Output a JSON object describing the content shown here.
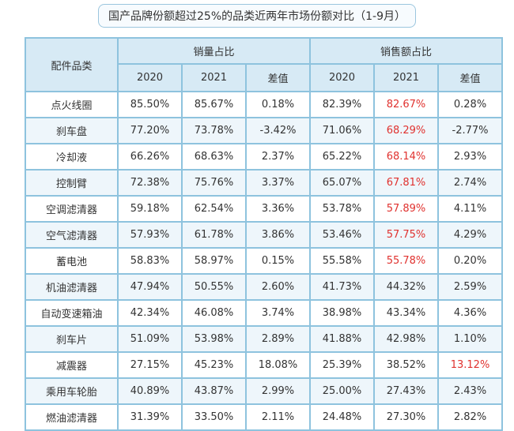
{
  "title": "国产品牌份额超过25%的品类近两年市场份额对比（1-9月）",
  "header": {
    "category": "配件品类",
    "group1": "销量占比",
    "group2": "销售额占比",
    "sub": [
      "2020",
      "2021",
      "差值",
      "2020",
      "2021",
      "差值"
    ]
  },
  "colors": {
    "highlight": "#e0322f",
    "border": "#8ec3de",
    "header_bg": "#d7eaf5"
  },
  "rows": [
    {
      "name": "点火线圈",
      "v": [
        "85.50%",
        "85.67%",
        "0.18%",
        "82.39%",
        "82.67%",
        "0.28%"
      ],
      "red": [
        4
      ]
    },
    {
      "name": "刹车盘",
      "v": [
        "77.20%",
        "73.78%",
        "-3.42%",
        "71.06%",
        "68.29%",
        "-2.77%"
      ],
      "red": [
        4
      ]
    },
    {
      "name": "冷却液",
      "v": [
        "66.26%",
        "68.63%",
        "2.37%",
        "65.22%",
        "68.14%",
        "2.93%"
      ],
      "red": [
        4
      ]
    },
    {
      "name": "控制臂",
      "v": [
        "72.38%",
        "75.76%",
        "3.37%",
        "65.07%",
        "67.81%",
        "2.74%"
      ],
      "red": [
        4
      ]
    },
    {
      "name": "空调滤清器",
      "v": [
        "59.18%",
        "62.54%",
        "3.36%",
        "53.78%",
        "57.89%",
        "4.11%"
      ],
      "red": [
        4
      ]
    },
    {
      "name": "空气滤清器",
      "v": [
        "57.93%",
        "61.78%",
        "3.86%",
        "53.46%",
        "57.75%",
        "4.29%"
      ],
      "red": [
        4
      ]
    },
    {
      "name": "蓄电池",
      "v": [
        "58.83%",
        "58.97%",
        "0.15%",
        "55.58%",
        "55.78%",
        "0.20%"
      ],
      "red": [
        4
      ]
    },
    {
      "name": "机油滤清器",
      "v": [
        "47.94%",
        "50.55%",
        "2.60%",
        "41.73%",
        "44.32%",
        "2.59%"
      ],
      "red": []
    },
    {
      "name": "自动变速箱油",
      "v": [
        "42.34%",
        "46.08%",
        "3.74%",
        "38.98%",
        "43.34%",
        "4.36%"
      ],
      "red": []
    },
    {
      "name": "刹车片",
      "v": [
        "51.09%",
        "53.98%",
        "2.89%",
        "41.88%",
        "42.98%",
        "1.10%"
      ],
      "red": []
    },
    {
      "name": "减震器",
      "v": [
        "27.15%",
        "45.23%",
        "18.08%",
        "25.39%",
        "38.52%",
        "13.12%"
      ],
      "red": [
        5
      ]
    },
    {
      "name": "乘用车轮胎",
      "v": [
        "40.89%",
        "43.87%",
        "2.99%",
        "25.00%",
        "27.43%",
        "2.43%"
      ],
      "red": []
    },
    {
      "name": "燃油滤清器",
      "v": [
        "31.39%",
        "33.50%",
        "2.11%",
        "24.48%",
        "27.30%",
        "2.82%"
      ],
      "red": []
    }
  ]
}
